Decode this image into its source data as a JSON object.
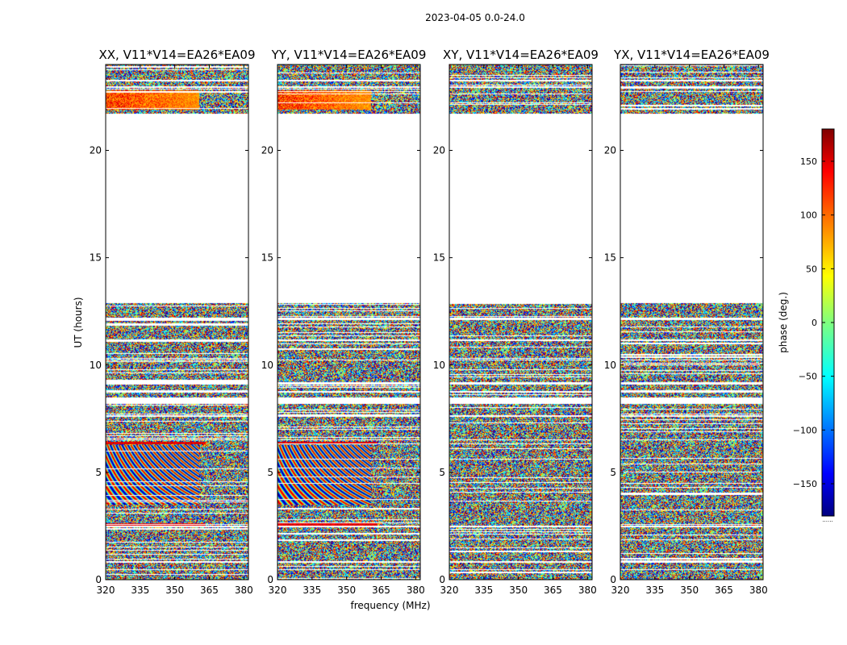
{
  "chart_data": {
    "type": "heatmap",
    "title": "2023-04-05 0.0-24.0",
    "xlabel": "frequency (MHz)",
    "ylabel": "UT (hours)",
    "xlim": [
      320,
      382
    ],
    "ylim": [
      0,
      24
    ],
    "xticks": [
      "320",
      "335",
      "350",
      "365",
      "380"
    ],
    "yticks": [
      "0",
      "5",
      "10",
      "15",
      "20"
    ],
    "panels": [
      {
        "title": "XX, V11*V14=EA26*EA09",
        "pol": "XX"
      },
      {
        "title": "YY, V11*V14=EA26*EA09",
        "pol": "YY"
      },
      {
        "title": "XY, V11*V14=EA26*EA09",
        "pol": "XY"
      },
      {
        "title": "YX, V11*V14=EA26*EA09",
        "pol": "YX"
      }
    ],
    "data_ranges_hours": [
      [
        0.0,
        0.45
      ],
      [
        0.5,
        0.8
      ],
      [
        0.85,
        2.45
      ],
      [
        2.5,
        6.5
      ],
      [
        6.55,
        7.6
      ],
      [
        7.65,
        8.2
      ],
      [
        8.5,
        8.7
      ],
      [
        8.8,
        9.1
      ],
      [
        9.2,
        10.2
      ],
      [
        10.25,
        11.1
      ],
      [
        11.2,
        12.1
      ],
      [
        12.2,
        12.9
      ],
      [
        21.7,
        22.9
      ],
      [
        23.0,
        23.2
      ],
      [
        23.3,
        24.0
      ]
    ],
    "colorbar": {
      "label": "phase (deg.)",
      "range": [
        -180,
        180
      ],
      "ticks": [
        "150",
        "100",
        "50",
        "0",
        "−50",
        "−100",
        "−150"
      ],
      "colormap": "jet",
      "footer": "......"
    }
  }
}
